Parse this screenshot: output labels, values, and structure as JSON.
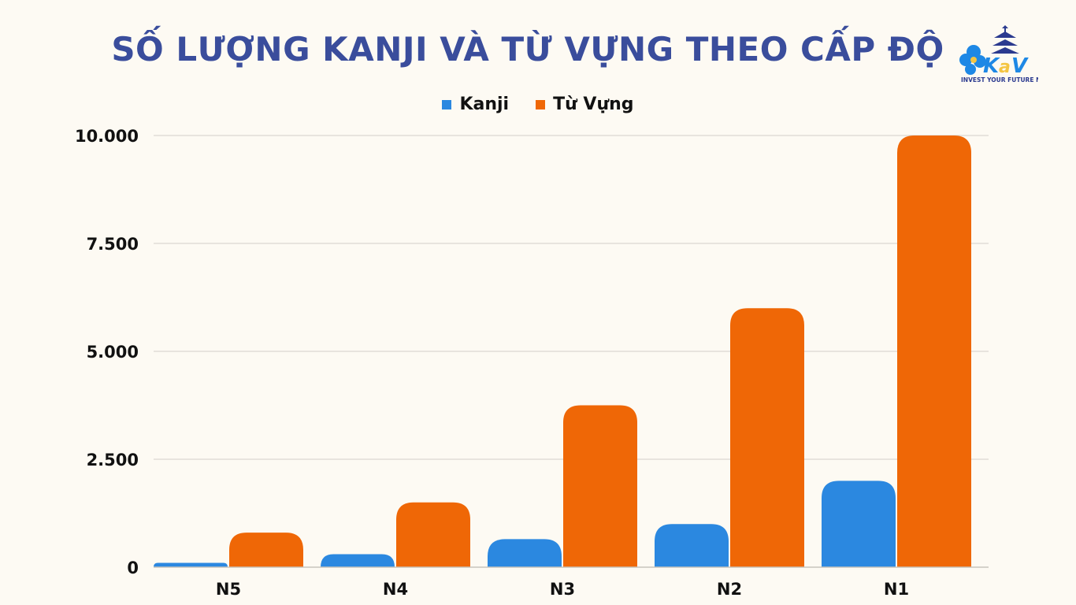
{
  "title": "SỐ LƯỢNG KANJI VÀ TỪ VỰNG THEO CẤP ĐỘ",
  "logo": {
    "brand": "KaV",
    "tagline": "INVEST YOUR FUTURE NOW",
    "colors": {
      "primary": "#1e88e5",
      "accent": "#f4c542",
      "dark": "#2b3a8f"
    }
  },
  "chart_data": {
    "type": "bar",
    "categories": [
      "N5",
      "N4",
      "N3",
      "N2",
      "N1"
    ],
    "series": [
      {
        "name": "Kanji",
        "color": "#2b88e0",
        "values": [
          100,
          300,
          650,
          1000,
          2000
        ]
      },
      {
        "name": "Từ Vựng",
        "color": "#ef6706",
        "values": [
          800,
          1500,
          3750,
          6000,
          10000
        ]
      }
    ],
    "ylim": [
      0,
      10000
    ],
    "yticks": [
      0,
      2500,
      5000,
      7500,
      10000
    ],
    "ytick_labels": [
      "0",
      "2.500",
      "5.000",
      "7.500",
      "10.000"
    ],
    "grid": true,
    "legend_position": "top"
  }
}
